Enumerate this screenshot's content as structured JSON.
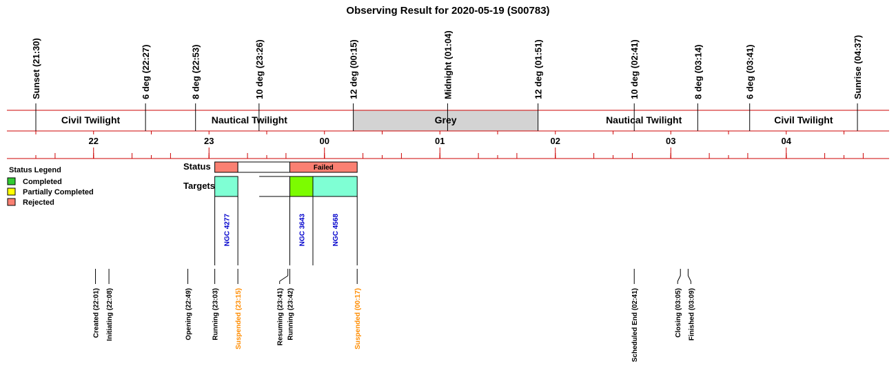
{
  "chart_data": {
    "type": "timeline",
    "title": "Observing Result for 2020-05-19 (S00783)",
    "colors": {
      "axis_line": "#cc0000",
      "grey_band": "#d3d3d3",
      "completed": "#33cc33",
      "partial": "#ffff00",
      "rejected": "#fa8072",
      "target_fill": "#7fffd4",
      "target_done": "#7cfc00",
      "target_text": "#0000cc",
      "suspended_text": "#ff8c00"
    },
    "sky_events": [
      {
        "label": "Sunset (21:30)",
        "time": "21:30"
      },
      {
        "label": "6 deg (22:27)",
        "time": "22:27"
      },
      {
        "label": "8 deg (22:53)",
        "time": "22:53"
      },
      {
        "label": "10 deg (23:26)",
        "time": "23:26"
      },
      {
        "label": "12 deg (00:15)",
        "time": "00:15"
      },
      {
        "label": "Midnight (01:04)",
        "time": "01:04"
      },
      {
        "label": "12 deg (01:51)",
        "time": "01:51"
      },
      {
        "label": "10 deg (02:41)",
        "time": "02:41"
      },
      {
        "label": "8 deg (03:14)",
        "time": "03:14"
      },
      {
        "label": "6 deg (03:41)",
        "time": "03:41"
      },
      {
        "label": "Sunrise (04:37)",
        "time": "04:37"
      }
    ],
    "twilight_bands": [
      {
        "label": "Civil Twilight",
        "start": "21:30",
        "end": "22:27",
        "grey": false
      },
      {
        "label": "Nautical Twilight",
        "start": "22:27",
        "end": "00:15",
        "grey": false
      },
      {
        "label": "Grey",
        "start": "00:15",
        "end": "01:51",
        "grey": true
      },
      {
        "label": "Nautical Twilight",
        "start": "01:51",
        "end": "03:41",
        "grey": false
      },
      {
        "label": "Civil Twilight",
        "start": "03:41",
        "end": "04:37",
        "grey": false
      }
    ],
    "hour_labels": [
      "22",
      "23",
      "00",
      "01",
      "02",
      "03",
      "04"
    ],
    "row_labels": {
      "status": "Status",
      "targets": "Targets"
    },
    "legend": {
      "title": "Status Legend",
      "items": [
        {
          "label": "Completed",
          "color": "#33cc33"
        },
        {
          "label": "Partially Completed",
          "color": "#ffff00"
        },
        {
          "label": "Rejected",
          "color": "#fa8072"
        }
      ]
    },
    "status_blocks": [
      {
        "start": "23:03",
        "end": "23:15",
        "status": "rejected",
        "label": ""
      },
      {
        "start": "23:15",
        "end": "23:42",
        "status": "none",
        "label": ""
      },
      {
        "start": "23:42",
        "end": "00:17",
        "status": "rejected",
        "label": "Failed"
      }
    ],
    "targets": [
      {
        "name": "NGC 4277",
        "start": "23:03",
        "end": "23:15",
        "fill": "target_fill"
      },
      {
        "name": "NGC 3643",
        "start": "23:42",
        "end": "23:54",
        "fill": "target_done"
      },
      {
        "name": "NGC 4568",
        "start": "23:54",
        "end": "00:17",
        "fill": "target_fill"
      }
    ],
    "system_events": [
      {
        "label": "Created (22:01)",
        "time": "22:01",
        "highlight": false
      },
      {
        "label": "Initiating (22:08)",
        "time": "22:08",
        "highlight": false
      },
      {
        "label": "Opening (22:49)",
        "time": "22:49",
        "highlight": false
      },
      {
        "label": "Running (23:03)",
        "time": "23:03",
        "highlight": false
      },
      {
        "label": "Suspended (23:15)",
        "time": "23:15",
        "highlight": true
      },
      {
        "label": "Resuming (23:41)",
        "time": "23:41",
        "highlight": false
      },
      {
        "label": "Running (23:42)",
        "time": "23:42",
        "highlight": false
      },
      {
        "label": "Suspended (00:17)",
        "time": "00:17",
        "highlight": true
      },
      {
        "label": "Scheduled End (02:41)",
        "time": "02:41",
        "highlight": false
      },
      {
        "label": "Closing (03:05)",
        "time": "03:05",
        "highlight": false
      },
      {
        "label": "Finished (03:09)",
        "time": "03:09",
        "highlight": false
      }
    ]
  }
}
